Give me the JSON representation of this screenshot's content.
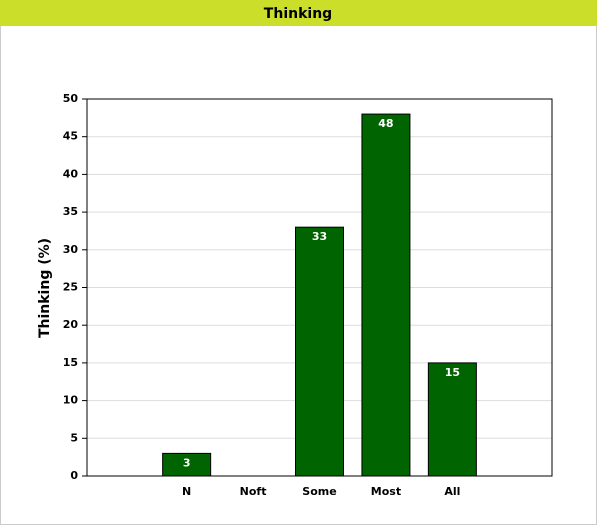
{
  "chart_data": {
    "type": "bar",
    "title": "Thinking",
    "ylabel": "Thinking (%)",
    "categories": [
      "N",
      "Noft",
      "Some",
      "Most",
      "All"
    ],
    "values": [
      3,
      null,
      33,
      48,
      15
    ],
    "color": "#006400",
    "ylim": [
      0,
      50
    ],
    "yticks": [
      0,
      5,
      10,
      15,
      20,
      25,
      30,
      35,
      40,
      45,
      50
    ],
    "grid": true
  }
}
